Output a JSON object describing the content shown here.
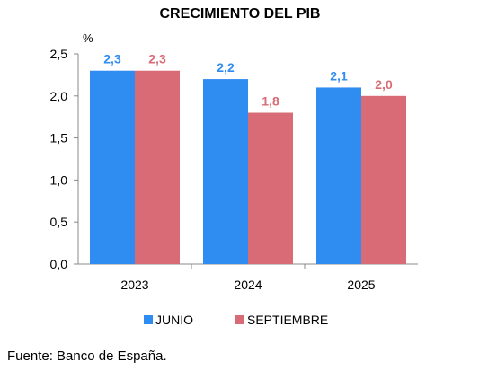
{
  "chart_data": {
    "type": "bar",
    "title": "CRECIMIENTO DEL PIB",
    "unit_label": "%",
    "categories": [
      "2023",
      "2024",
      "2025"
    ],
    "series": [
      {
        "name": "JUNIO",
        "color": "#2f8cf0",
        "values": [
          2.3,
          2.2,
          2.1
        ],
        "labels": [
          "2,3",
          "2,2",
          "2,1"
        ]
      },
      {
        "name": "SEPTIEMBRE",
        "color": "#d96b76",
        "values": [
          2.3,
          1.8,
          2.0
        ],
        "labels": [
          "2,3",
          "1,8",
          "2,0"
        ]
      }
    ],
    "ylim": [
      0,
      2.5
    ],
    "yticks": [
      "0,0",
      "0,5",
      "1,0",
      "1,5",
      "2,0",
      "2,5"
    ],
    "grid": false,
    "legend_position": "bottom"
  },
  "source": "Fuente: Banco de España."
}
